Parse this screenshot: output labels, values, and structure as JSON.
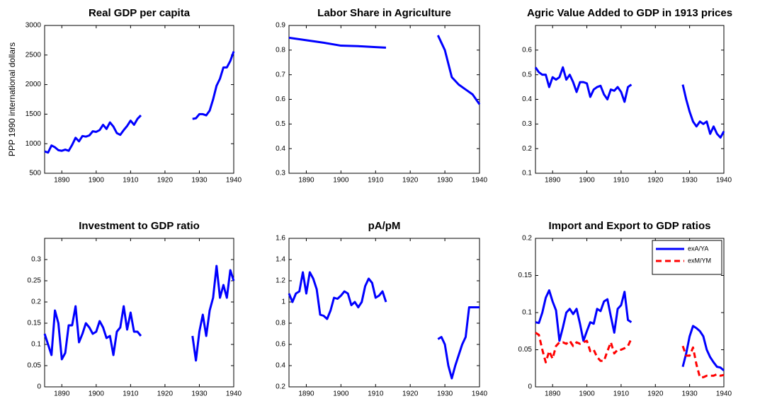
{
  "chart_data": [
    {
      "type": "line",
      "title": "Real GDP per capita",
      "ylabel": "PPP 1990 international dollars",
      "color": "#0000ff",
      "x": [
        1885,
        1886,
        1887,
        1888,
        1889,
        1890,
        1891,
        1892,
        1893,
        1894,
        1895,
        1896,
        1897,
        1898,
        1899,
        1900,
        1901,
        1902,
        1903,
        1904,
        1905,
        1906,
        1907,
        1908,
        1909,
        1910,
        1911,
        1912,
        1913,
        1920,
        1928,
        1929,
        1930,
        1931,
        1932,
        1933,
        1934,
        1935,
        1936,
        1937,
        1938,
        1939,
        1940
      ],
      "values": [
        870,
        850,
        970,
        940,
        890,
        880,
        900,
        880,
        980,
        1100,
        1040,
        1130,
        1120,
        1140,
        1210,
        1200,
        1230,
        1320,
        1250,
        1360,
        1290,
        1180,
        1150,
        1230,
        1300,
        1390,
        1320,
        1420,
        1480,
        null,
        1420,
        1430,
        1500,
        1500,
        1480,
        1560,
        1750,
        1980,
        2100,
        2290,
        2290,
        2400,
        2560
      ],
      "xlim": [
        1885,
        1940
      ],
      "xticks": [
        1890,
        1900,
        1910,
        1920,
        1930,
        1940
      ],
      "ylim": [
        500,
        3000
      ],
      "yticks": [
        500,
        1000,
        1500,
        2000,
        2500,
        3000
      ]
    },
    {
      "type": "line",
      "title": "Labor Share in Agriculture",
      "color": "#0000ff",
      "x": [
        1885,
        1890,
        1895,
        1900,
        1905,
        1910,
        1913,
        1920,
        1928,
        1930,
        1932,
        1934,
        1936,
        1938,
        1940
      ],
      "values": [
        0.85,
        0.84,
        0.83,
        0.818,
        0.816,
        0.812,
        0.81,
        null,
        0.86,
        0.8,
        0.69,
        0.66,
        0.64,
        0.62,
        0.58
      ],
      "xlim": [
        1885,
        1940
      ],
      "xticks": [
        1890,
        1900,
        1910,
        1920,
        1930,
        1940
      ],
      "ylim": [
        0.3,
        0.9
      ],
      "yticks": [
        0.3,
        0.4,
        0.5,
        0.6,
        0.7,
        0.8,
        0.9
      ]
    },
    {
      "type": "line",
      "title": "Agric Value Added to GDP in 1913 prices",
      "color": "#0000ff",
      "x": [
        1885,
        1886,
        1887,
        1888,
        1889,
        1890,
        1891,
        1892,
        1893,
        1894,
        1895,
        1896,
        1897,
        1898,
        1899,
        1900,
        1901,
        1902,
        1903,
        1904,
        1905,
        1906,
        1907,
        1908,
        1909,
        1910,
        1911,
        1912,
        1913,
        1920,
        1928,
        1929,
        1930,
        1931,
        1932,
        1933,
        1934,
        1935,
        1936,
        1937,
        1938,
        1939,
        1940
      ],
      "values": [
        0.53,
        0.51,
        0.5,
        0.5,
        0.45,
        0.49,
        0.48,
        0.49,
        0.53,
        0.48,
        0.5,
        0.47,
        0.43,
        0.47,
        0.47,
        0.465,
        0.41,
        0.44,
        0.45,
        0.455,
        0.42,
        0.4,
        0.44,
        0.435,
        0.45,
        0.43,
        0.39,
        0.45,
        0.46,
        null,
        0.46,
        0.4,
        0.35,
        0.31,
        0.29,
        0.31,
        0.3,
        0.31,
        0.26,
        0.29,
        0.26,
        0.245,
        0.27
      ],
      "xlim": [
        1885,
        1940
      ],
      "xticks": [
        1890,
        1900,
        1910,
        1920,
        1930,
        1940
      ],
      "ylim": [
        0.1,
        0.7
      ],
      "yticks": [
        0.1,
        0.2,
        0.3,
        0.4,
        0.5,
        0.6
      ]
    },
    {
      "type": "line",
      "title": "Investment to GDP ratio",
      "color": "#0000ff",
      "x": [
        1885,
        1886,
        1887,
        1888,
        1889,
        1890,
        1891,
        1892,
        1893,
        1894,
        1895,
        1896,
        1897,
        1898,
        1899,
        1900,
        1901,
        1902,
        1903,
        1904,
        1905,
        1906,
        1907,
        1908,
        1909,
        1910,
        1911,
        1912,
        1913,
        1920,
        1928,
        1929,
        1930,
        1931,
        1932,
        1933,
        1934,
        1935,
        1936,
        1937,
        1938,
        1939,
        1940
      ],
      "values": [
        0.125,
        0.1,
        0.075,
        0.18,
        0.15,
        0.065,
        0.08,
        0.145,
        0.145,
        0.19,
        0.105,
        0.125,
        0.15,
        0.14,
        0.125,
        0.13,
        0.155,
        0.14,
        0.115,
        0.12,
        0.075,
        0.13,
        0.14,
        0.19,
        0.135,
        0.175,
        0.13,
        0.13,
        0.12,
        null,
        0.12,
        0.062,
        0.13,
        0.17,
        0.12,
        0.18,
        0.21,
        0.285,
        0.21,
        0.24,
        0.21,
        0.275,
        0.25
      ],
      "xlim": [
        1885,
        1940
      ],
      "xticks": [
        1890,
        1900,
        1910,
        1920,
        1930,
        1940
      ],
      "ylim": [
        0,
        0.35
      ],
      "yticks": [
        0,
        0.05,
        0.1,
        0.15,
        0.2,
        0.25,
        0.3
      ]
    },
    {
      "type": "line",
      "title": "pA/pM",
      "color": "#0000ff",
      "x": [
        1885,
        1886,
        1887,
        1888,
        1889,
        1890,
        1891,
        1892,
        1893,
        1894,
        1895,
        1896,
        1897,
        1898,
        1899,
        1900,
        1901,
        1902,
        1903,
        1904,
        1905,
        1906,
        1907,
        1908,
        1909,
        1910,
        1911,
        1912,
        1913,
        1920,
        1928,
        1929,
        1930,
        1931,
        1932,
        1933,
        1934,
        1935,
        1936,
        1937,
        1938,
        1939,
        1940
      ],
      "values": [
        1.08,
        1.0,
        1.08,
        1.1,
        1.28,
        1.08,
        1.28,
        1.22,
        1.12,
        0.88,
        0.87,
        0.84,
        0.92,
        1.04,
        1.03,
        1.06,
        1.1,
        1.08,
        0.97,
        1.0,
        0.95,
        1.0,
        1.15,
        1.22,
        1.18,
        1.04,
        1.06,
        1.1,
        1.0,
        null,
        0.65,
        0.67,
        0.6,
        0.4,
        0.28,
        0.4,
        0.5,
        0.6,
        0.67,
        0.95,
        0.95,
        0.95,
        0.95
      ],
      "xlim": [
        1885,
        1940
      ],
      "xticks": [
        1890,
        1900,
        1910,
        1920,
        1930,
        1940
      ],
      "ylim": [
        0.2,
        1.6
      ],
      "yticks": [
        0.2,
        0.4,
        0.6,
        0.8,
        1,
        1.2,
        1.4,
        1.6
      ]
    },
    {
      "type": "line",
      "title": "Import and Export to GDP ratios",
      "legend": "upper right",
      "x": [
        1885,
        1886,
        1887,
        1888,
        1889,
        1890,
        1891,
        1892,
        1893,
        1894,
        1895,
        1896,
        1897,
        1898,
        1899,
        1900,
        1901,
        1902,
        1903,
        1904,
        1905,
        1906,
        1907,
        1908,
        1909,
        1910,
        1911,
        1912,
        1913,
        1920,
        1928,
        1929,
        1930,
        1931,
        1932,
        1933,
        1934,
        1935,
        1936,
        1937,
        1938,
        1939,
        1940
      ],
      "series": [
        {
          "name": "exA/YA",
          "color": "#0000ff",
          "line_style": "solid",
          "values": [
            0.087,
            0.086,
            0.1,
            0.12,
            0.13,
            0.115,
            0.103,
            0.062,
            0.08,
            0.1,
            0.105,
            0.098,
            0.105,
            0.085,
            0.062,
            0.075,
            0.087,
            0.085,
            0.105,
            0.102,
            0.115,
            0.118,
            0.095,
            0.073,
            0.105,
            0.11,
            0.128,
            0.09,
            0.087,
            null,
            0.027,
            0.045,
            0.068,
            0.082,
            0.079,
            0.075,
            0.068,
            0.05,
            0.04,
            0.033,
            0.027,
            0.026,
            0.022
          ]
        },
        {
          "name": "exM/YM",
          "color": "#ff0000",
          "line_style": "dashed",
          "values": [
            0.073,
            0.07,
            0.05,
            0.033,
            0.048,
            0.038,
            0.055,
            0.06,
            0.06,
            0.058,
            0.062,
            0.055,
            0.06,
            0.058,
            0.06,
            0.062,
            0.048,
            0.05,
            0.04,
            0.035,
            0.035,
            0.048,
            0.06,
            0.045,
            0.05,
            0.05,
            0.052,
            0.055,
            0.065,
            null,
            0.055,
            0.042,
            0.042,
            0.053,
            0.03,
            0.013,
            0.013,
            0.015,
            0.015,
            0.015,
            0.017,
            0.015,
            0.016
          ]
        }
      ],
      "xlim": [
        1885,
        1940
      ],
      "xticks": [
        1890,
        1900,
        1910,
        1920,
        1930,
        1940
      ],
      "ylim": [
        0,
        0.2
      ],
      "yticks": [
        0,
        0.05,
        0.1,
        0.15,
        0.2
      ]
    }
  ]
}
